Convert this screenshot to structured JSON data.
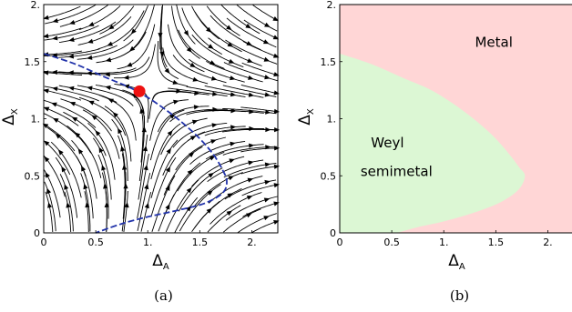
{
  "chart_data": [
    {
      "type": "streamplot",
      "caption": "(a)",
      "xlabel": {
        "base": "Δ",
        "sub": "A"
      },
      "ylabel": {
        "base": "Δ",
        "sub": "X"
      },
      "xlim": [
        0,
        2.25
      ],
      "ylim": [
        0,
        2
      ],
      "xticks": [
        {
          "v": 0,
          "label": "0"
        },
        {
          "v": 0.5,
          "label": "0.5"
        },
        {
          "v": 1,
          "label": "1."
        },
        {
          "v": 1.5,
          "label": "1.5"
        },
        {
          "v": 2,
          "label": "2."
        }
      ],
      "yticks": [
        {
          "v": 0,
          "label": "0"
        },
        {
          "v": 0.5,
          "label": "0.5"
        },
        {
          "v": 1,
          "label": "1."
        },
        {
          "v": 1.5,
          "label": "1.5"
        },
        {
          "v": 2,
          "label": "2."
        }
      ],
      "fixed_point": {
        "x": 0.92,
        "y": 1.24,
        "color": "#ee1111"
      },
      "separatrix": {
        "color": "#2233aa",
        "points": [
          [
            0,
            1.57
          ],
          [
            0.3,
            1.48
          ],
          [
            0.6,
            1.36
          ],
          [
            0.9,
            1.24
          ],
          [
            1.2,
            1.06
          ],
          [
            1.45,
            0.87
          ],
          [
            1.62,
            0.7
          ],
          [
            1.72,
            0.55
          ],
          [
            1.76,
            0.45
          ],
          [
            1.72,
            0.35
          ],
          [
            1.55,
            0.26
          ],
          [
            1.3,
            0.2
          ],
          [
            1.0,
            0.14
          ],
          [
            0.75,
            0.08
          ],
          [
            0.5,
            0.0
          ]
        ]
      }
    },
    {
      "type": "phase_diagram",
      "caption": "(b)",
      "xlabel": {
        "base": "Δ",
        "sub": "A"
      },
      "ylabel": {
        "base": "Δ",
        "sub": "X"
      },
      "xlim": [
        0,
        2.25
      ],
      "ylim": [
        0,
        2
      ],
      "xticks": [
        {
          "v": 0,
          "label": "0"
        },
        {
          "v": 0.5,
          "label": "0.5"
        },
        {
          "v": 1,
          "label": "1."
        },
        {
          "v": 1.5,
          "label": "1.5"
        },
        {
          "v": 2,
          "label": "2."
        }
      ],
      "yticks": [
        {
          "v": 0,
          "label": "0"
        },
        {
          "v": 0.5,
          "label": "0.5"
        },
        {
          "v": 1,
          "label": "1."
        },
        {
          "v": 1.5,
          "label": "1.5"
        },
        {
          "v": 2,
          "label": "2."
        }
      ],
      "regions": [
        {
          "label": "Metal",
          "color": "#ffd6d6"
        },
        {
          "label": "Weyl semimetal",
          "lines": [
            "Weyl",
            "semimetal"
          ],
          "color": "#dcf7d4"
        }
      ],
      "boundary": [
        [
          0,
          1.57
        ],
        [
          0.3,
          1.48
        ],
        [
          0.6,
          1.36
        ],
        [
          0.9,
          1.24
        ],
        [
          1.2,
          1.06
        ],
        [
          1.45,
          0.87
        ],
        [
          1.62,
          0.7
        ],
        [
          1.72,
          0.58
        ],
        [
          1.78,
          0.5
        ],
        [
          1.72,
          0.38
        ],
        [
          1.55,
          0.27
        ],
        [
          1.3,
          0.18
        ],
        [
          1.0,
          0.1
        ],
        [
          0.75,
          0.05
        ],
        [
          0.55,
          0.0
        ]
      ]
    }
  ]
}
